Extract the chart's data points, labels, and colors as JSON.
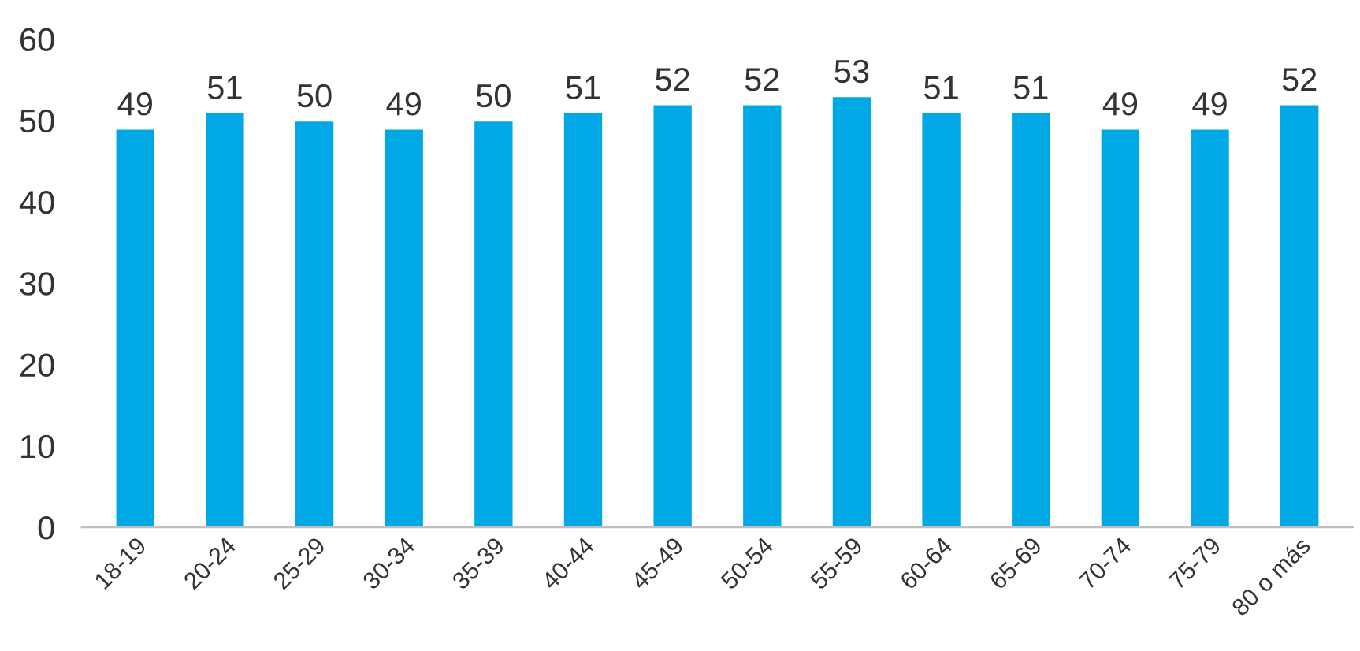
{
  "chart_data": {
    "type": "bar",
    "categories": [
      "18-19",
      "20-24",
      "25-29",
      "30-34",
      "35-39",
      "40-44",
      "45-49",
      "50-54",
      "55-59",
      "60-64",
      "65-69",
      "70-74",
      "75-79",
      "80 o más"
    ],
    "values": [
      49,
      51,
      50,
      49,
      50,
      51,
      52,
      52,
      53,
      51,
      51,
      49,
      49,
      52
    ],
    "color": "#00a9e6",
    "ylim": [
      0,
      60
    ],
    "yticks": [
      0,
      10,
      20,
      30,
      40,
      50,
      60
    ],
    "data_labels": true,
    "grid": false
  }
}
